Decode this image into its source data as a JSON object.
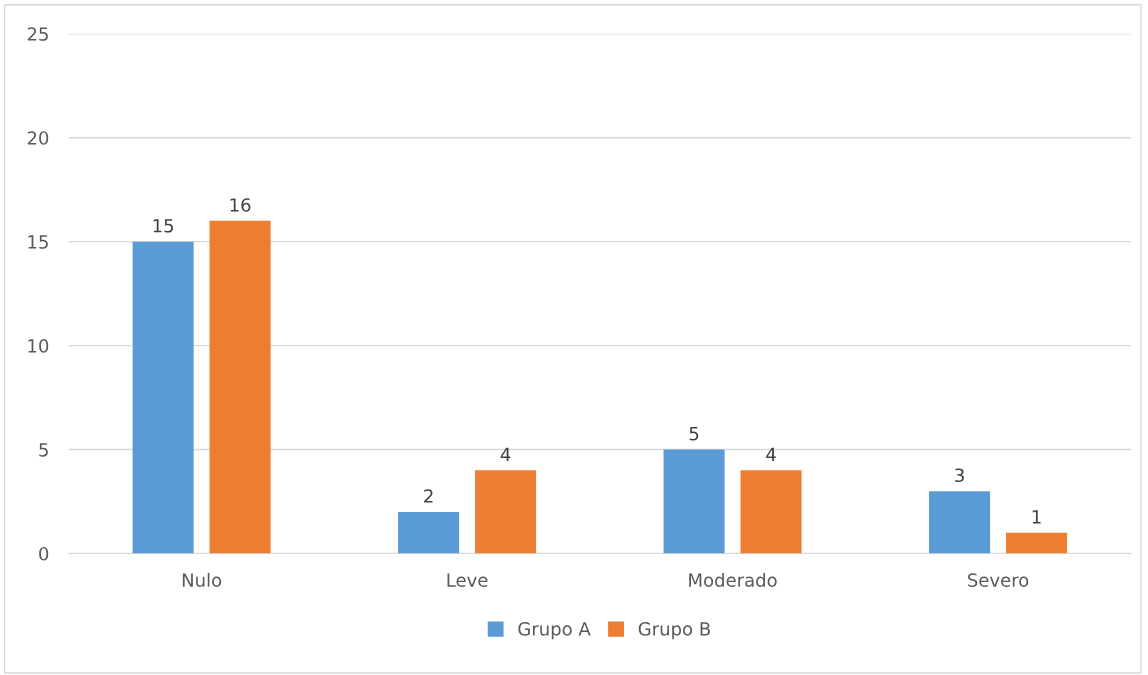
{
  "chart_data": {
    "type": "bar",
    "categories": [
      "Nulo",
      "Leve",
      "Moderado",
      "Severo"
    ],
    "series": [
      {
        "name": "Grupo A",
        "color": "#5b9bd5",
        "values": [
          15,
          2,
          5,
          3
        ]
      },
      {
        "name": "Grupo B",
        "color": "#ed7d31",
        "values": [
          16,
          4,
          4,
          1
        ]
      }
    ],
    "ylim": [
      0,
      25
    ],
    "yticks": [
      0,
      5,
      10,
      15,
      20,
      25
    ],
    "grid": "y",
    "legend": "bottom",
    "data_labels": true
  }
}
